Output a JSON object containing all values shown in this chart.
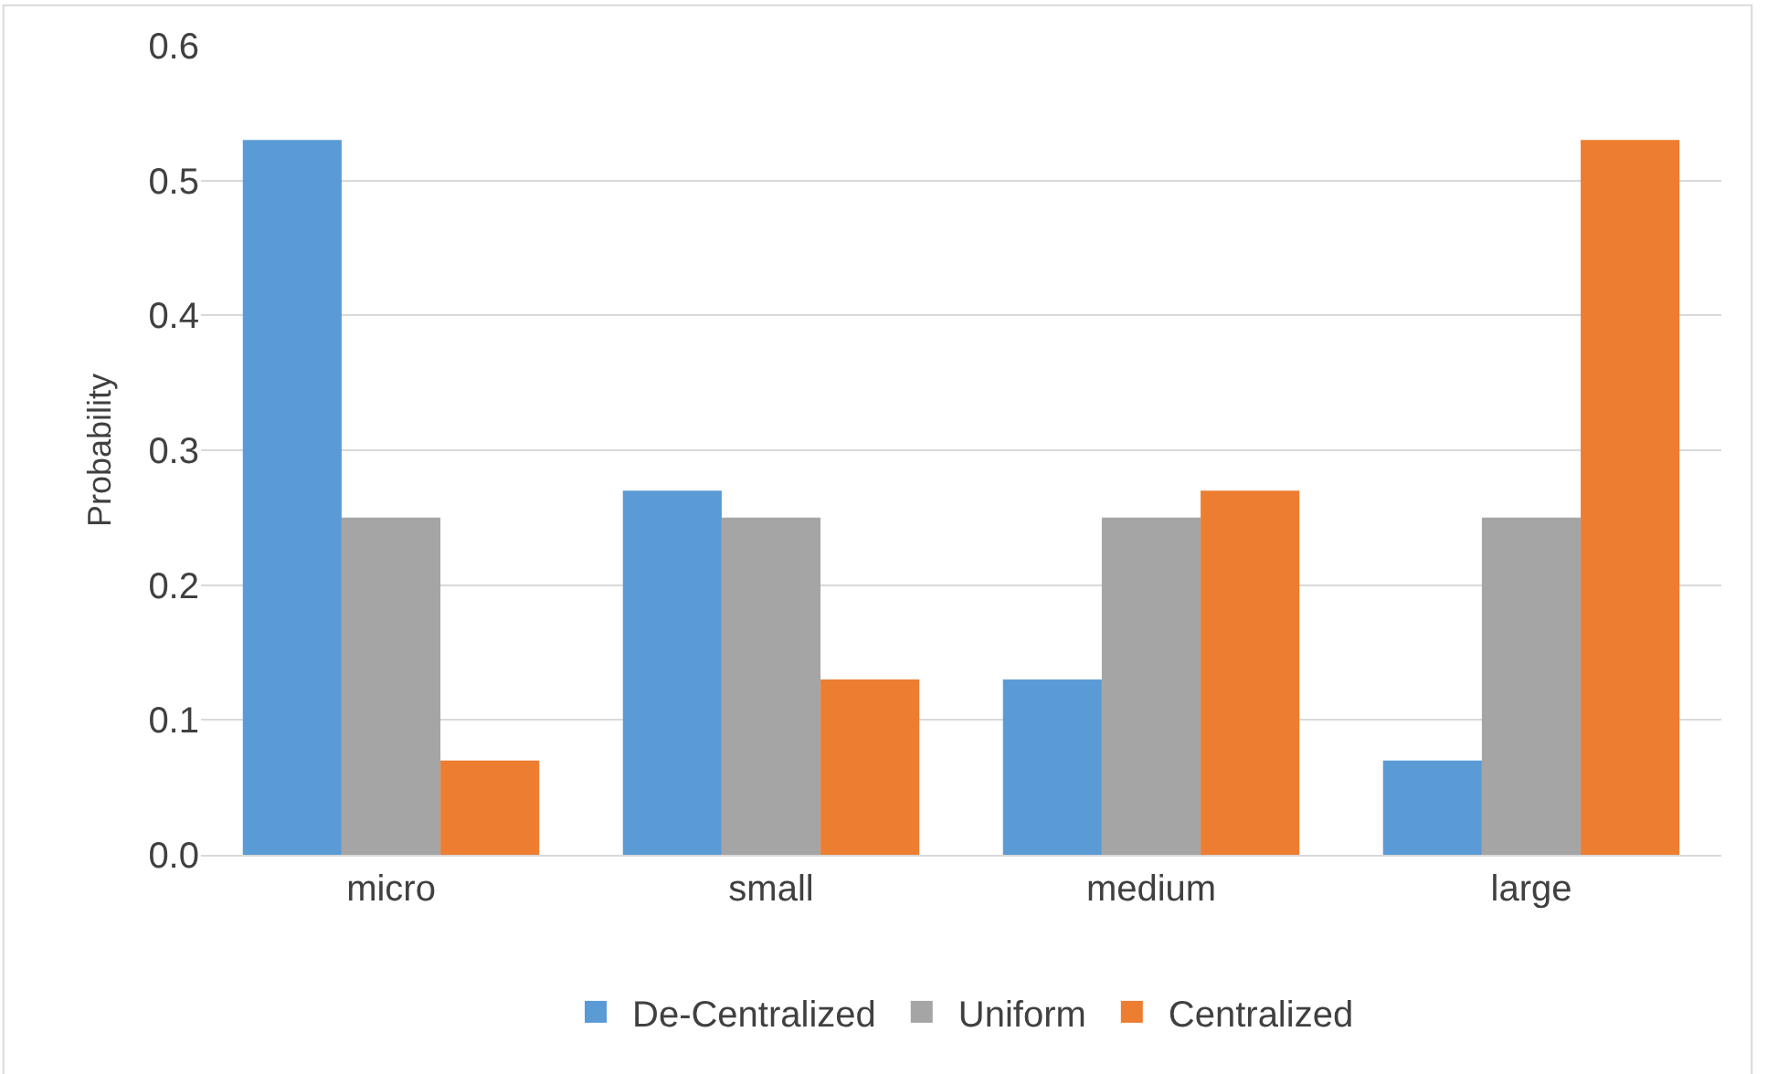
{
  "chart_data": {
    "type": "bar",
    "ylabel": "Probability",
    "categories": [
      "micro",
      "small",
      "medium",
      "large"
    ],
    "series": [
      {
        "name": "De-Centralized",
        "color": "#5b9bd5",
        "values": [
          0.53,
          0.27,
          0.13,
          0.07
        ]
      },
      {
        "name": "Uniform",
        "color": "#a5a5a5",
        "values": [
          0.25,
          0.25,
          0.25,
          0.25
        ]
      },
      {
        "name": "Centralized",
        "color": "#ed7d31",
        "values": [
          0.07,
          0.13,
          0.27,
          0.53
        ]
      }
    ],
    "ylim": [
      0,
      0.6
    ],
    "yticks": [
      {
        "value": 0,
        "label": "0.0"
      },
      0.1,
      0.2,
      0.3,
      0.4,
      0.5,
      0.6
    ],
    "grid": "y",
    "legend": "bottom"
  }
}
